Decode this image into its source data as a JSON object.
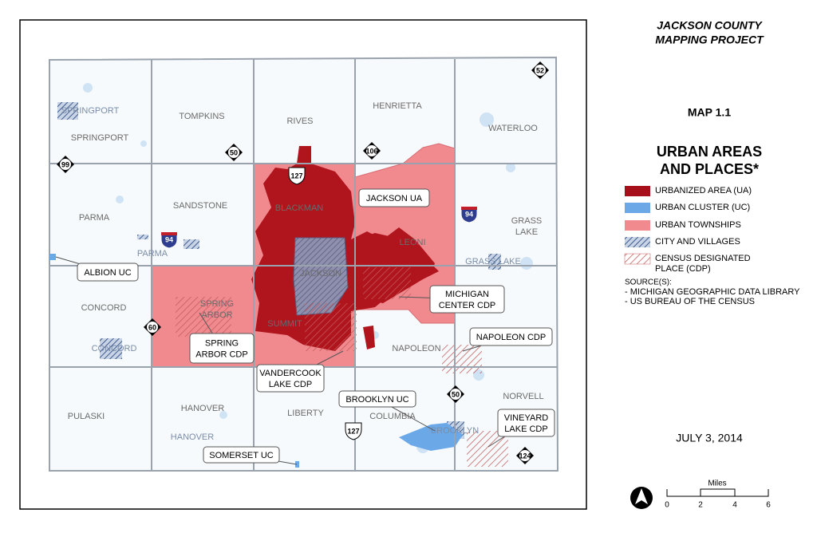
{
  "header": {
    "title_lines": [
      "JACKSON COUNTY",
      "MAPPING PROJECT"
    ],
    "map_number": "MAP 1.1",
    "subtitle_lines": [
      "URBAN AREAS",
      "AND PLACES*"
    ]
  },
  "legend": {
    "items": [
      {
        "label_lines": [
          "URBANIZED AREA (UA)"
        ]
      },
      {
        "label_lines": [
          "URBAN CLUSTER (UC)"
        ]
      },
      {
        "label_lines": [
          "URBAN TOWNSHIPS"
        ]
      },
      {
        "label_lines": [
          "CITY AND VILLAGES"
        ]
      },
      {
        "label_lines": [
          "CENSUS DESIGNATED",
          "PLACE (CDP)"
        ]
      }
    ],
    "sources_title": "SOURCE(S):",
    "sources": [
      "- MICHIGAN GEOGRAPHIC DATA LIBRARY",
      "- US BUREAU OF THE CENSUS"
    ]
  },
  "date": "JULY 3, 2014",
  "scale": {
    "title": "Miles",
    "ticks": [
      "0",
      "2",
      "4",
      "6"
    ]
  },
  "map": {
    "townships": [
      {
        "lines": [
          "SPRINGPORT"
        ]
      },
      {
        "lines": [
          "TOMPKINS"
        ]
      },
      {
        "lines": [
          "RIVES"
        ]
      },
      {
        "lines": [
          "HENRIETTA"
        ]
      },
      {
        "lines": [
          "WATERLOO"
        ]
      },
      {
        "lines": [
          "PARMA"
        ]
      },
      {
        "lines": [
          "SANDSTONE"
        ]
      },
      {
        "lines": [
          "BLACKMAN"
        ]
      },
      {
        "lines": [
          "LEONI"
        ]
      },
      {
        "lines": [
          "GRASS",
          "LAKE"
        ]
      },
      {
        "lines": [
          "CONCORD"
        ]
      },
      {
        "lines": [
          "SPRING",
          "ARBOR"
        ]
      },
      {
        "lines": [
          "SUMMIT"
        ]
      },
      {
        "lines": [
          "JACKSON"
        ]
      },
      {
        "lines": [
          "NAPOLEON"
        ]
      },
      {
        "lines": [
          "PULASKI"
        ]
      },
      {
        "lines": [
          "HANOVER"
        ]
      },
      {
        "lines": [
          "LIBERTY"
        ]
      },
      {
        "lines": [
          "COLUMBIA"
        ]
      },
      {
        "lines": [
          "NORVELL"
        ]
      }
    ],
    "places": [
      "SPRINGPORT",
      "PARMA",
      "CONCORD",
      "GRASS LAKE",
      "HANOVER",
      "BROOKLYN"
    ],
    "callouts": [
      {
        "lines": [
          "JACKSON UA"
        ]
      },
      {
        "lines": [
          "ALBION UC"
        ]
      },
      {
        "lines": [
          "MICHIGAN",
          "CENTER CDP"
        ]
      },
      {
        "lines": [
          "NAPOLEON CDP"
        ]
      },
      {
        "lines": [
          "SPRING",
          "ARBOR CDP"
        ]
      },
      {
        "lines": [
          "VANDERCOOK",
          "LAKE CDP"
        ]
      },
      {
        "lines": [
          "BROOKLYN UC"
        ]
      },
      {
        "lines": [
          "VINEYARD",
          "LAKE CDP"
        ]
      },
      {
        "lines": [
          "SOMERSET UC"
        ]
      }
    ],
    "highways": [
      "99",
      "50",
      "106",
      "52",
      "127",
      "94",
      "94",
      "60",
      "50",
      "127",
      "124"
    ]
  }
}
